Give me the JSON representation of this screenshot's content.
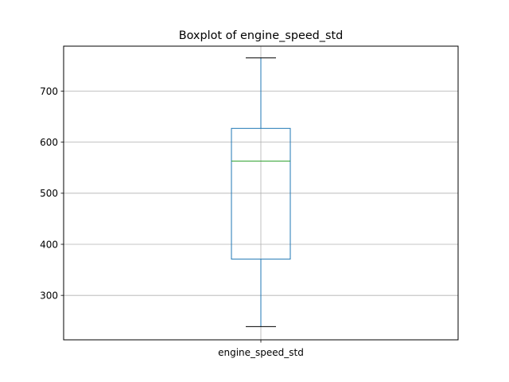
{
  "chart_data": {
    "type": "boxplot",
    "title": "Boxplot of engine_speed_std",
    "xlabel": "",
    "ylabel": "",
    "categories": [
      "engine_speed_std"
    ],
    "boxes": [
      {
        "category": "engine_speed_std",
        "whisker_low": 239,
        "q1": 371,
        "median": 563,
        "q3": 627,
        "whisker_high": 765
      }
    ],
    "ylim": [
      213,
      788
    ],
    "yticks": [
      300,
      400,
      500,
      600,
      700
    ],
    "grid": true,
    "colors": {
      "box": "#1f77b4",
      "median": "#2ca02c",
      "whisker_cap": "#000000",
      "grid": "#b0b0b0"
    }
  }
}
